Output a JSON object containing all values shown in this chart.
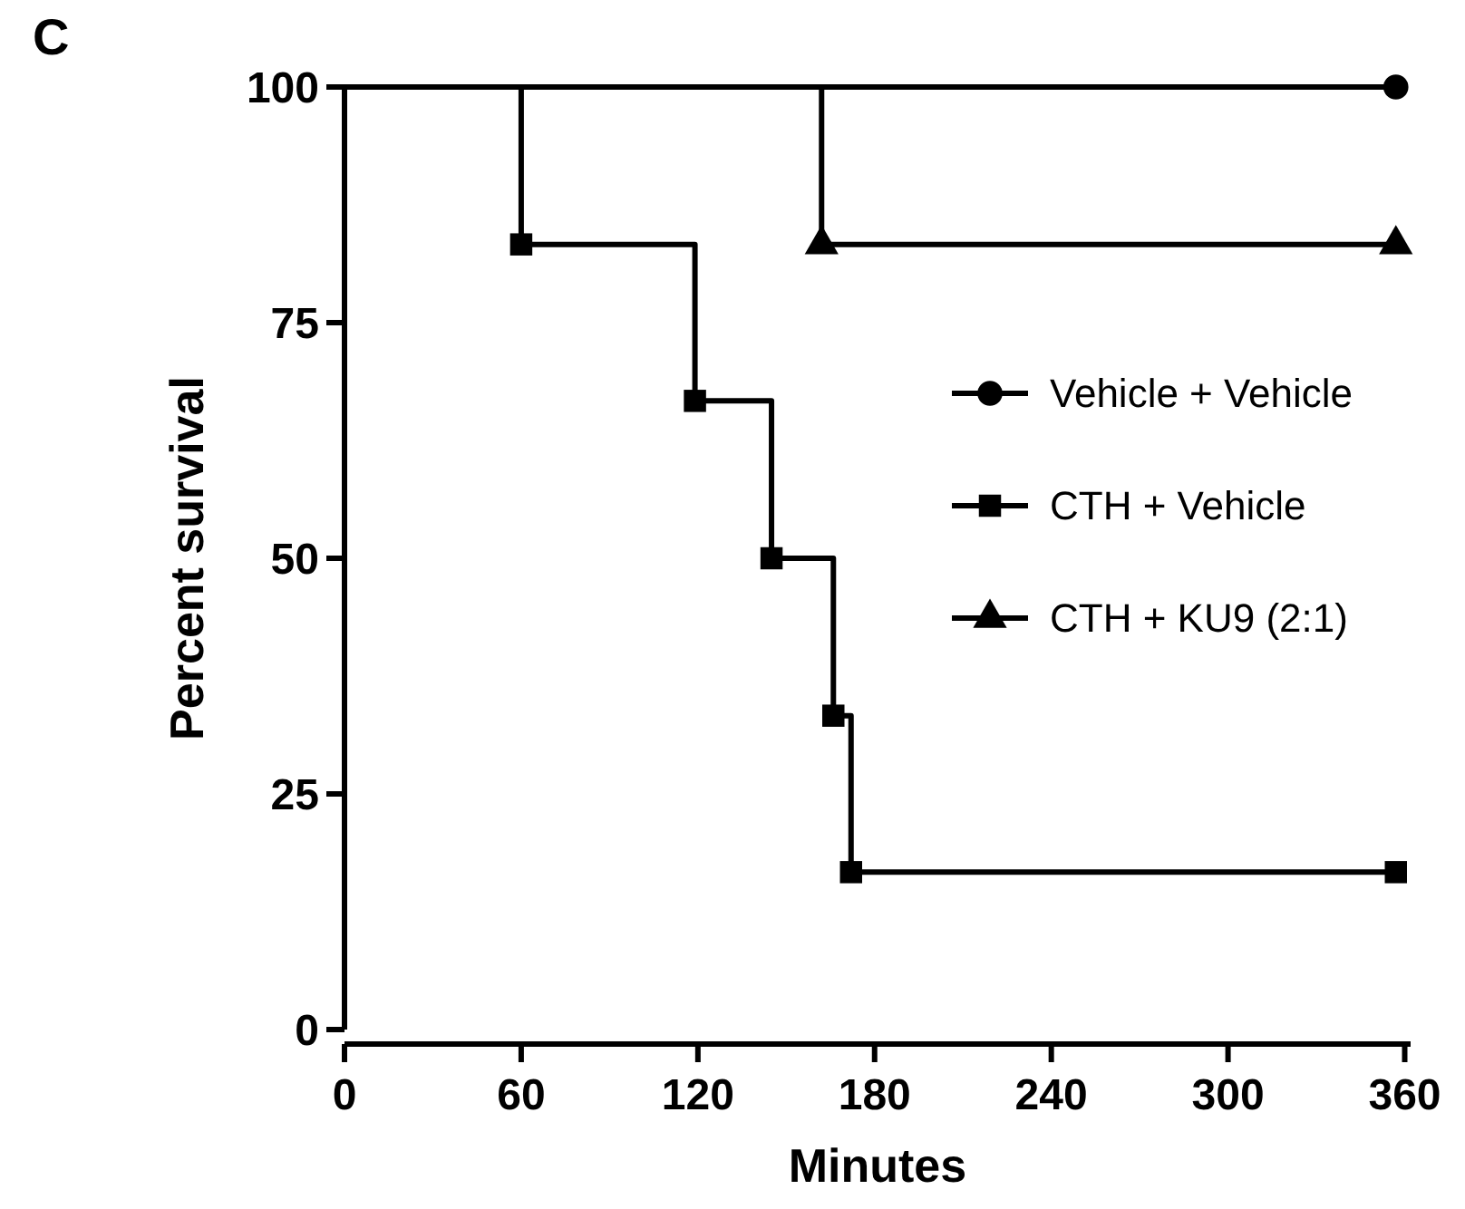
{
  "chart_data": {
    "type": "step",
    "title": "C",
    "xlabel": "Minutes",
    "ylabel": "Percent survival",
    "xlim": [
      0,
      362
    ],
    "xticks": [
      0,
      60,
      120,
      180,
      240,
      300,
      360
    ],
    "ylim": [
      0,
      100
    ],
    "yticks": [
      0,
      25,
      50,
      75,
      100
    ],
    "grid": false,
    "legend": "right",
    "line_style": "solid",
    "series": [
      {
        "name": "Vehicle + Vehicle",
        "color": "#000000",
        "marker": "circle",
        "x": [
          0,
          357
        ],
        "values": [
          100,
          100
        ]
      },
      {
        "name": "CTH + Vehicle",
        "color": "#000000",
        "marker": "square",
        "x": [
          0,
          60,
          119,
          145,
          166,
          172,
          357
        ],
        "values": [
          100,
          83.3,
          66.7,
          50,
          33.3,
          16.7,
          16.7
        ]
      },
      {
        "name": "CTH + KU9 (2:1)",
        "color": "#000000",
        "marker": "triangle",
        "x": [
          0,
          162,
          357
        ],
        "values": [
          100,
          83.3,
          83.3
        ]
      }
    ]
  }
}
